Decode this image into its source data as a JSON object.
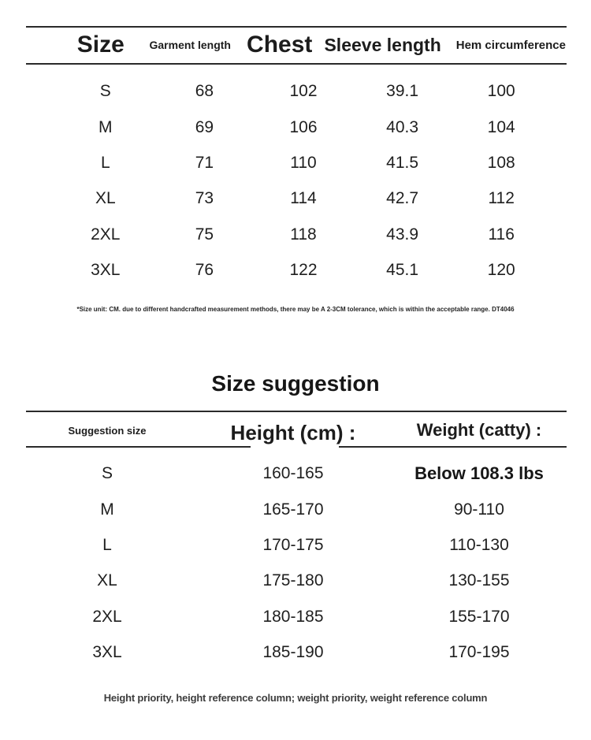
{
  "size_table": {
    "headers": [
      "Size",
      "Garment length",
      "Chest",
      "Sleeve length",
      "Hem circumference"
    ],
    "rows": [
      [
        "S",
        "68",
        "102",
        "39.1",
        "100"
      ],
      [
        "M",
        "69",
        "106",
        "40.3",
        "104"
      ],
      [
        "L",
        "71",
        "110",
        "41.5",
        "108"
      ],
      [
        "XL",
        "73",
        "114",
        "42.7",
        "112"
      ],
      [
        "2XL",
        "75",
        "118",
        "43.9",
        "116"
      ],
      [
        "3XL",
        "76",
        "122",
        "45.1",
        "120"
      ]
    ],
    "footnote": "*Size unit: CM. due to different handcrafted measurement methods, there may be A 2-3CM tolerance, which is within the acceptable range. DT4046"
  },
  "suggestion_table": {
    "title": "Size suggestion",
    "headers": [
      "Suggestion size",
      "Height (cm) :",
      "Weight (catty) :"
    ],
    "rows": [
      [
        "S",
        "160-165",
        "Below 108.3 lbs"
      ],
      [
        "M",
        "165-170",
        "90-110"
      ],
      [
        "L",
        "170-175",
        "110-130"
      ],
      [
        "XL",
        "175-180",
        "130-155"
      ],
      [
        "2XL",
        "180-185",
        "155-170"
      ],
      [
        "3XL",
        "185-190",
        "170-195"
      ]
    ],
    "note": "Height priority, height reference column; weight priority, weight reference column"
  },
  "colors": {
    "text": "#1c1c1c",
    "rule": "#2a2a2a",
    "note_text": "#3d3d3d",
    "background": "#ffffff"
  }
}
